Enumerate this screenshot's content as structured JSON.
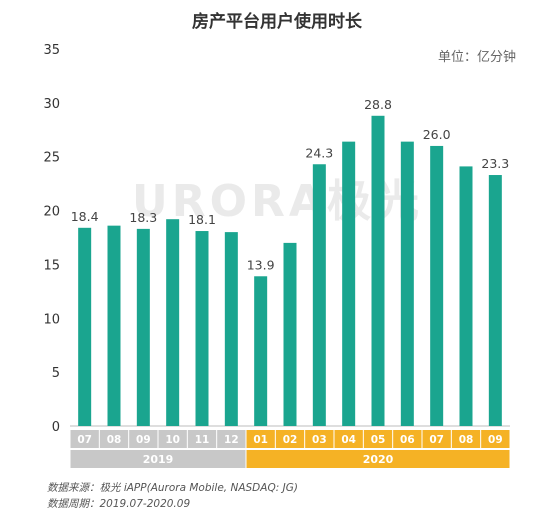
{
  "title": "房产平台用户使用时长",
  "unit": "单位：亿分钟",
  "watermark": "URORA极光",
  "source": "数据来源：极光 iAPP(Aurora Mobile, NASDAQ: JG)",
  "period": "数据周期：2019.07-2020.09",
  "colors": {
    "bar": "#1aa58f",
    "axis2019": "#c8c8c8",
    "axis2020": "#f5b225"
  },
  "chart_data": {
    "type": "bar",
    "categories": [
      "07",
      "08",
      "09",
      "10",
      "11",
      "12",
      "01",
      "02",
      "03",
      "04",
      "05",
      "06",
      "07",
      "08",
      "09"
    ],
    "groups": [
      {
        "label": "2019",
        "count": 6
      },
      {
        "label": "2020",
        "count": 9
      }
    ],
    "values": [
      18.4,
      18.6,
      18.3,
      19.2,
      18.1,
      18.0,
      13.9,
      17.0,
      24.3,
      26.4,
      28.8,
      26.4,
      26.0,
      24.1,
      23.3
    ],
    "data_labels": [
      "18.4",
      "",
      "18.3",
      "",
      "18.1",
      "",
      "13.9",
      "",
      "24.3",
      "",
      "28.8",
      "",
      "26.0",
      "",
      "23.3"
    ],
    "ylim": [
      0,
      35
    ],
    "yticks": [
      0,
      5,
      10,
      15,
      20,
      25,
      30,
      35
    ]
  }
}
